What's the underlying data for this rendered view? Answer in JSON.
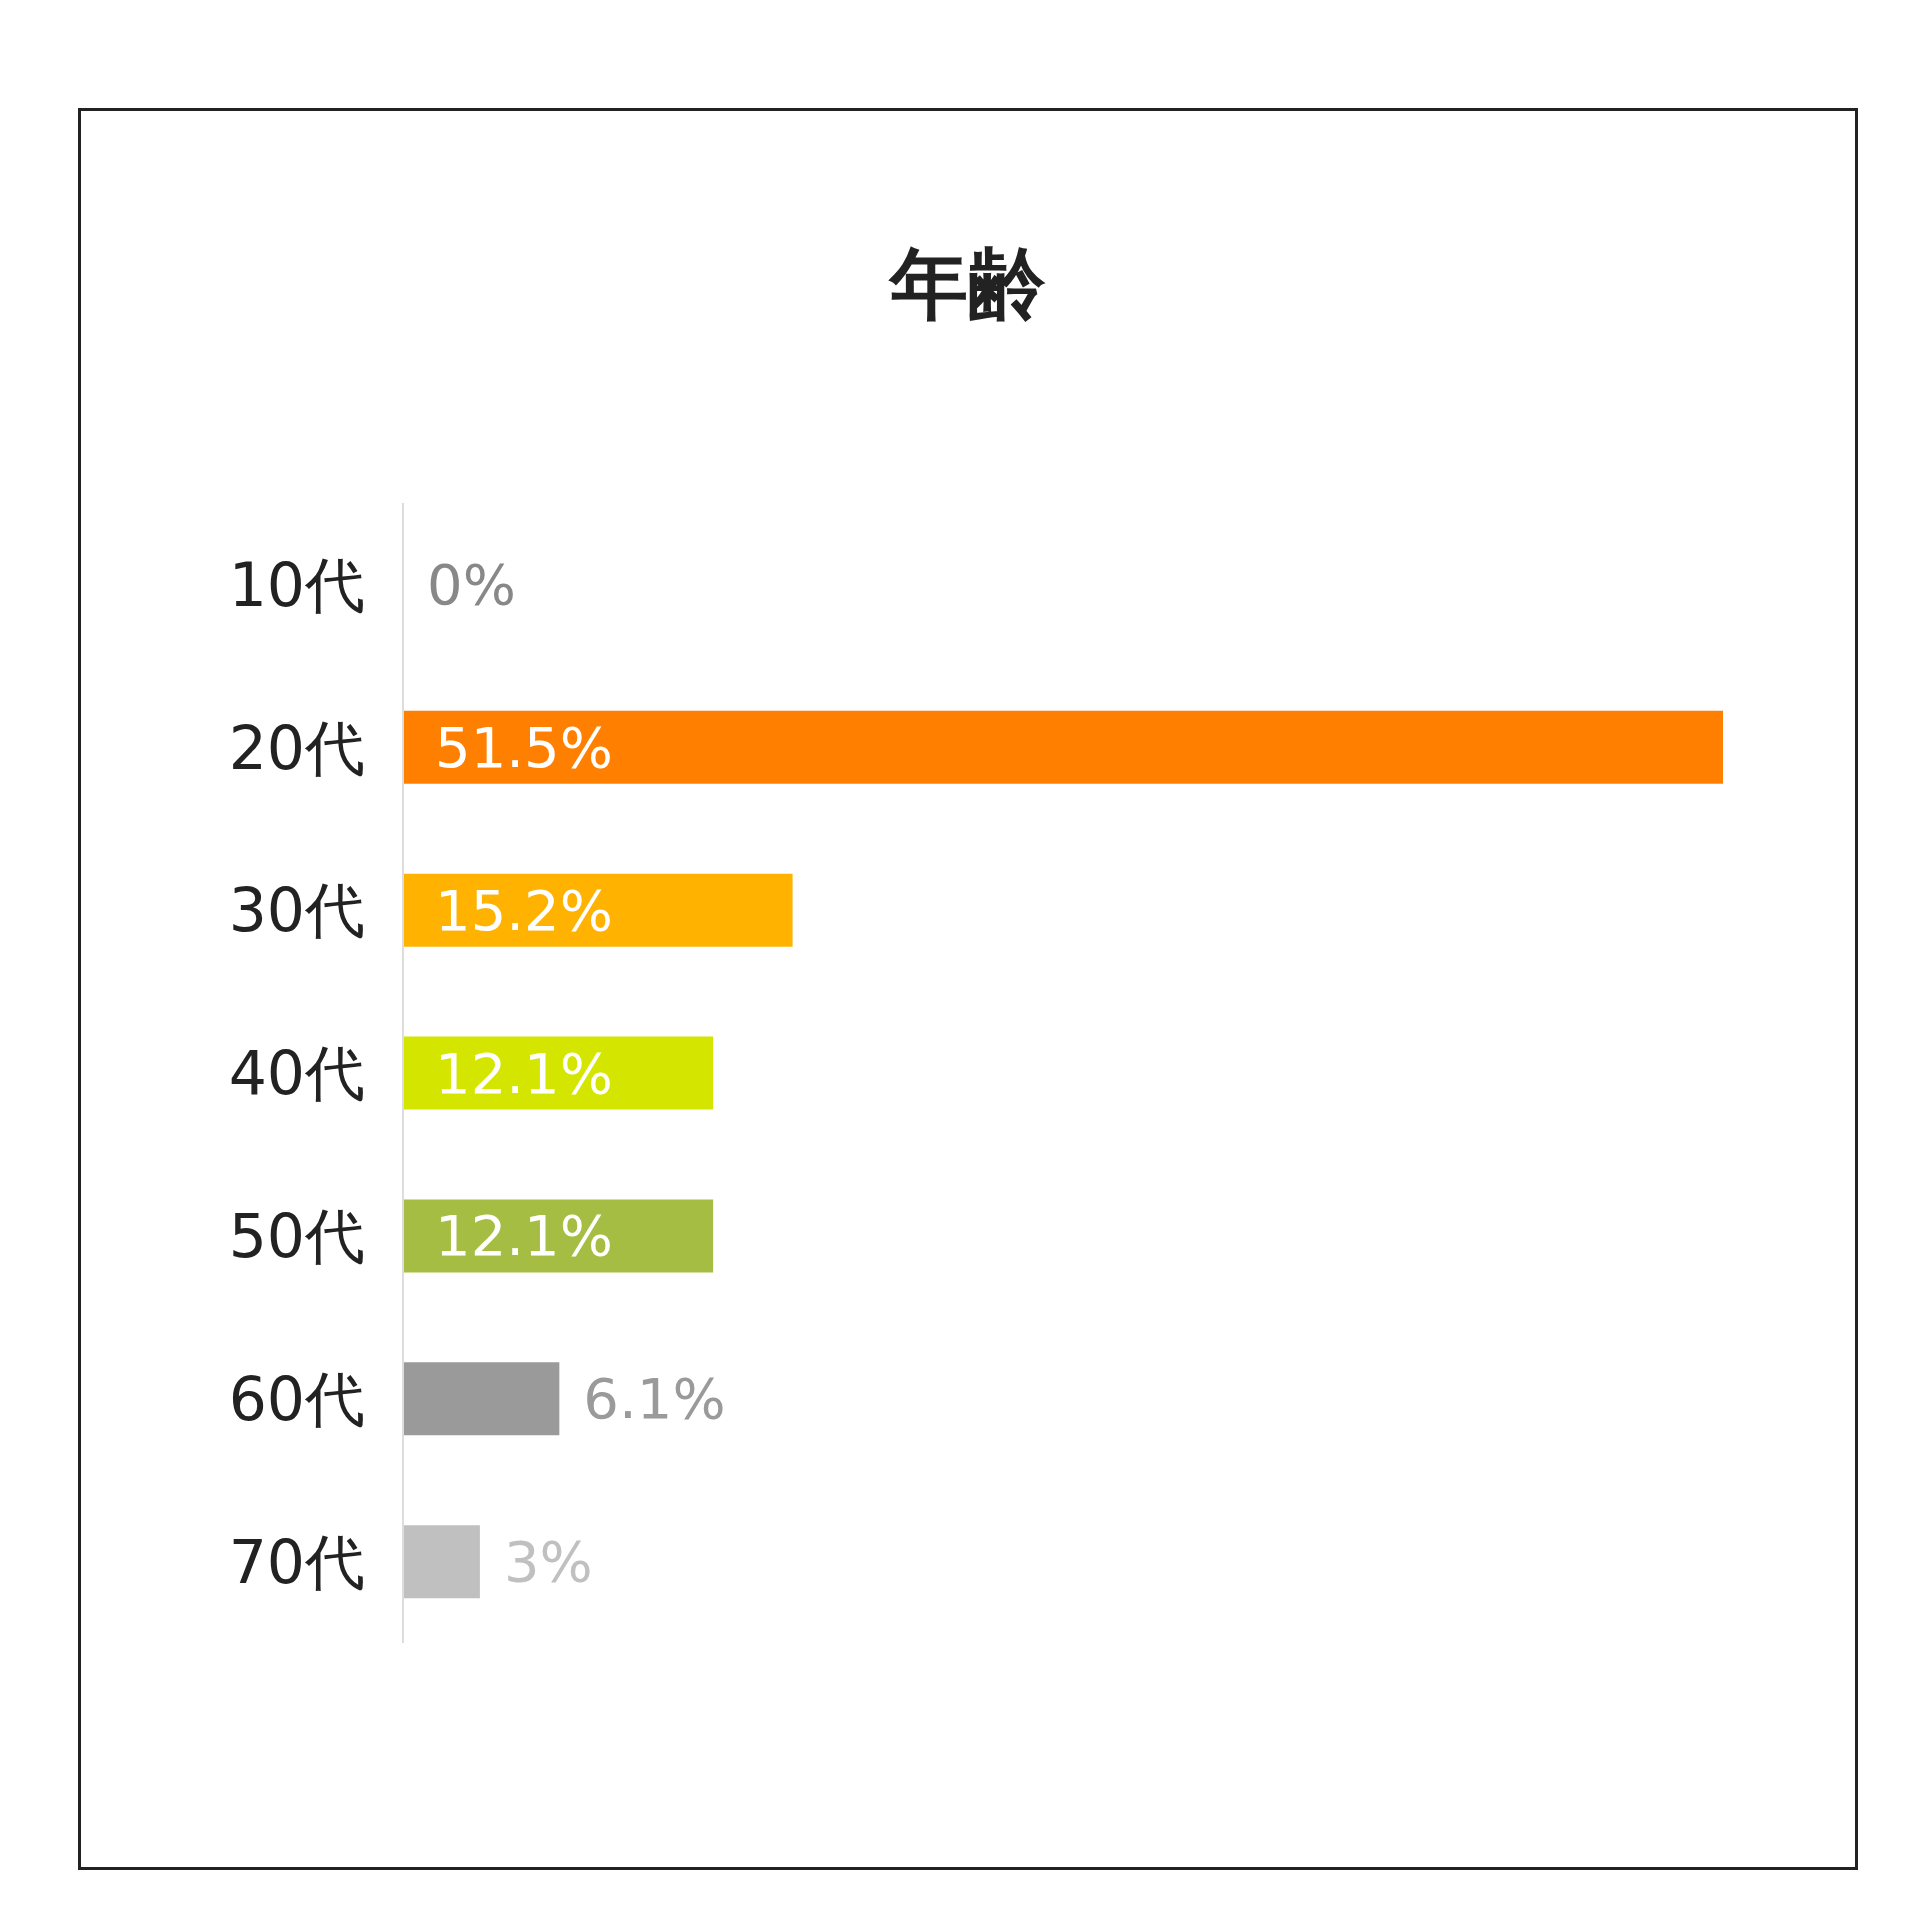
{
  "chart_data": {
    "type": "bar",
    "orientation": "horizontal",
    "title": "年齢",
    "categories": [
      "10代",
      "20代",
      "30代",
      "40代",
      "50代",
      "60代",
      "70代"
    ],
    "values": [
      0,
      51.5,
      15.2,
      12.1,
      12.1,
      6.1,
      3
    ],
    "colors": [
      "#888888",
      "#ff7f00",
      "#ffb300",
      "#d4e600",
      "#a5bd42",
      "#9a9a9a",
      "#c0c0c0"
    ],
    "value_labels": [
      "0%",
      "51.5%",
      "15.2%",
      "12.1%",
      "12.1%",
      "6.1%",
      "3%"
    ]
  }
}
